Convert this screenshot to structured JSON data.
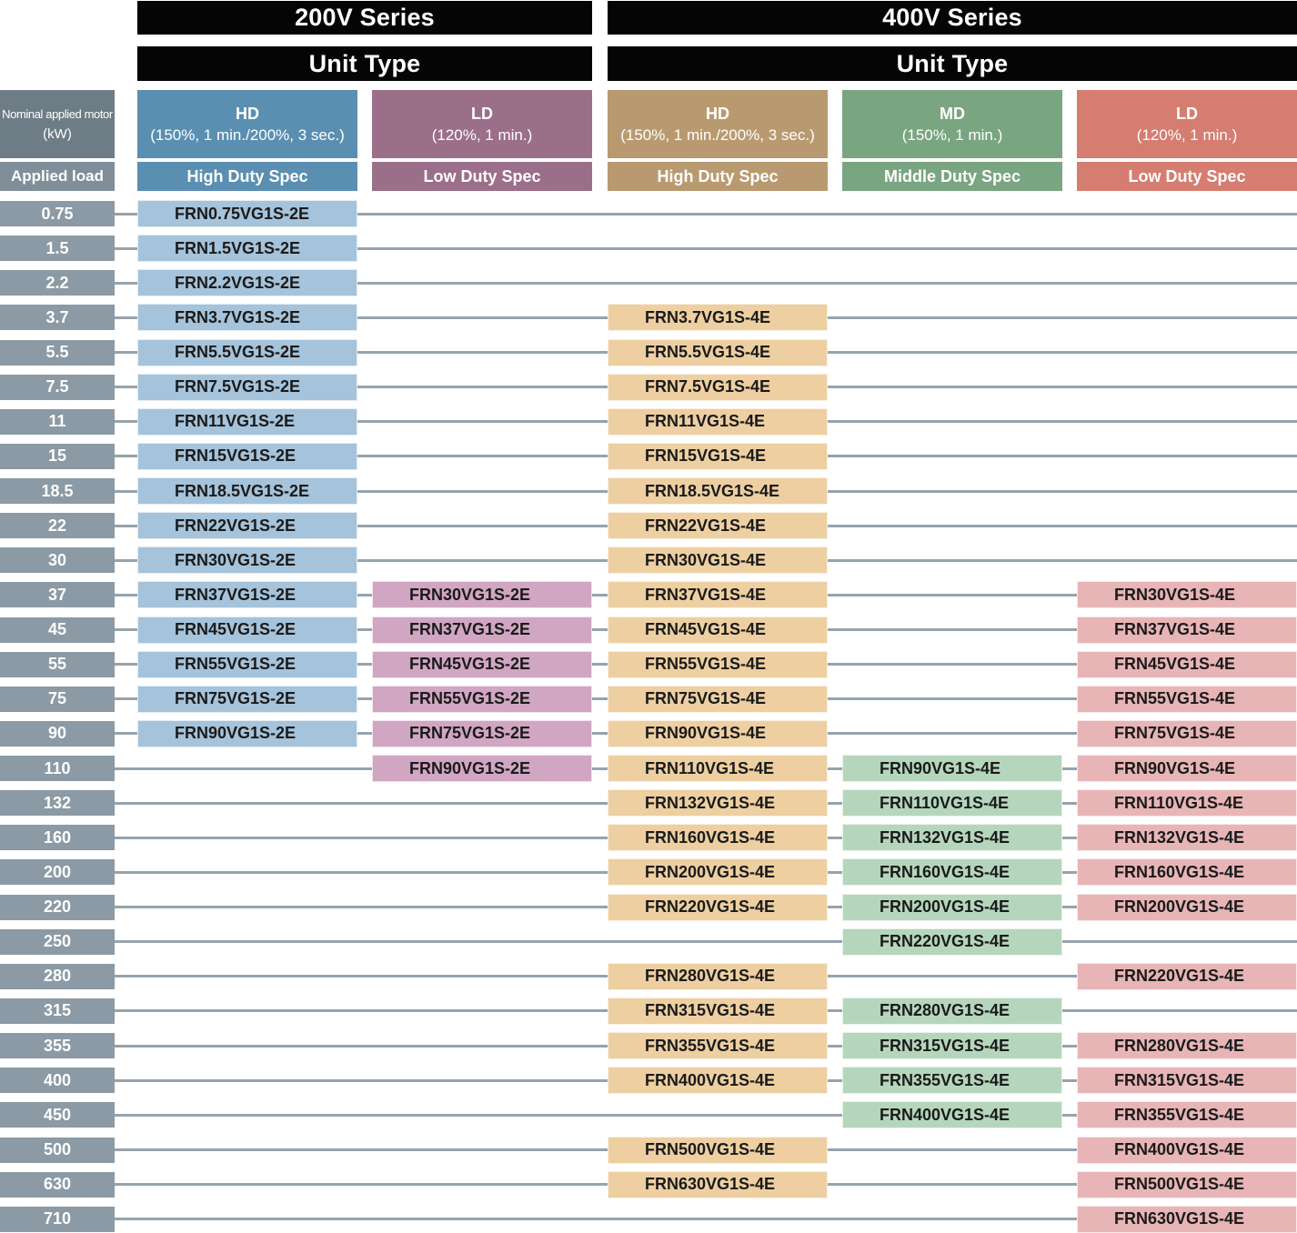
{
  "series": [
    {
      "title": "200V Series",
      "unit_type": "Unit Type"
    },
    {
      "title": "400V Series",
      "unit_type": "Unit Type"
    }
  ],
  "motor_header": {
    "line1": "Nominal applied motor",
    "line2": "(kW)"
  },
  "applied_load": "Applied load",
  "columns": [
    {
      "code": "HD",
      "detail": "(150%, 1 min./200%, 3 sec.)",
      "spec": "High Duty Spec",
      "head_color": "#5a8fb1",
      "cell_color": "#a5c3da"
    },
    {
      "code": "LD",
      "detail": "(120%, 1 min.)",
      "spec": "Low Duty Spec",
      "head_color": "#9b6f89",
      "cell_color": "#d1a6c2"
    },
    {
      "code": "HD",
      "detail": "(150%, 1 min./200%, 3 sec.)",
      "spec": "High Duty Spec",
      "head_color": "#b99a70",
      "cell_color": "#edcfa1"
    },
    {
      "code": "MD",
      "detail": "(150%, 1 min.)",
      "spec": "Middle Duty Spec",
      "head_color": "#7aa581",
      "cell_color": "#b5d6bc"
    },
    {
      "code": "LD",
      "detail": "(120%, 1 min.)",
      "spec": "Low Duty Spec",
      "head_color": "#d57d70",
      "cell_color": "#e8b5b6"
    }
  ],
  "rows": [
    {
      "kw": "0.75",
      "models": [
        "FRN0.75VG1S-2E",
        "",
        "",
        "",
        ""
      ]
    },
    {
      "kw": "1.5",
      "models": [
        "FRN1.5VG1S-2E",
        "",
        "",
        "",
        ""
      ]
    },
    {
      "kw": "2.2",
      "models": [
        "FRN2.2VG1S-2E",
        "",
        "",
        "",
        ""
      ]
    },
    {
      "kw": "3.7",
      "models": [
        "FRN3.7VG1S-2E",
        "",
        "FRN3.7VG1S-4E",
        "",
        ""
      ]
    },
    {
      "kw": "5.5",
      "models": [
        "FRN5.5VG1S-2E",
        "",
        "FRN5.5VG1S-4E",
        "",
        ""
      ]
    },
    {
      "kw": "7.5",
      "models": [
        "FRN7.5VG1S-2E",
        "",
        "FRN7.5VG1S-4E",
        "",
        ""
      ]
    },
    {
      "kw": "11",
      "models": [
        "FRN11VG1S-2E",
        "",
        "FRN11VG1S-4E",
        "",
        ""
      ]
    },
    {
      "kw": "15",
      "models": [
        "FRN15VG1S-2E",
        "",
        "FRN15VG1S-4E",
        "",
        ""
      ]
    },
    {
      "kw": "18.5",
      "models": [
        "FRN18.5VG1S-2E",
        "",
        "FRN18.5VG1S-4E",
        "",
        ""
      ]
    },
    {
      "kw": "22",
      "models": [
        "FRN22VG1S-2E",
        "",
        "FRN22VG1S-4E",
        "",
        ""
      ]
    },
    {
      "kw": "30",
      "models": [
        "FRN30VG1S-2E",
        "",
        "FRN30VG1S-4E",
        "",
        ""
      ]
    },
    {
      "kw": "37",
      "models": [
        "FRN37VG1S-2E",
        "FRN30VG1S-2E",
        "FRN37VG1S-4E",
        "",
        "FRN30VG1S-4E"
      ]
    },
    {
      "kw": "45",
      "models": [
        "FRN45VG1S-2E",
        "FRN37VG1S-2E",
        "FRN45VG1S-4E",
        "",
        "FRN37VG1S-4E"
      ]
    },
    {
      "kw": "55",
      "models": [
        "FRN55VG1S-2E",
        "FRN45VG1S-2E",
        "FRN55VG1S-4E",
        "",
        "FRN45VG1S-4E"
      ]
    },
    {
      "kw": "75",
      "models": [
        "FRN75VG1S-2E",
        "FRN55VG1S-2E",
        "FRN75VG1S-4E",
        "",
        "FRN55VG1S-4E"
      ]
    },
    {
      "kw": "90",
      "models": [
        "FRN90VG1S-2E",
        "FRN75VG1S-2E",
        "FRN90VG1S-4E",
        "",
        "FRN75VG1S-4E"
      ]
    },
    {
      "kw": "110",
      "models": [
        "",
        "FRN90VG1S-2E",
        "FRN110VG1S-4E",
        "FRN90VG1S-4E",
        "FRN90VG1S-4E"
      ]
    },
    {
      "kw": "132",
      "models": [
        "",
        "",
        "FRN132VG1S-4E",
        "FRN110VG1S-4E",
        "FRN110VG1S-4E"
      ]
    },
    {
      "kw": "160",
      "models": [
        "",
        "",
        "FRN160VG1S-4E",
        "FRN132VG1S-4E",
        "FRN132VG1S-4E"
      ]
    },
    {
      "kw": "200",
      "models": [
        "",
        "",
        "FRN200VG1S-4E",
        "FRN160VG1S-4E",
        "FRN160VG1S-4E"
      ]
    },
    {
      "kw": "220",
      "models": [
        "",
        "",
        "FRN220VG1S-4E",
        "FRN200VG1S-4E",
        "FRN200VG1S-4E"
      ]
    },
    {
      "kw": "250",
      "models": [
        "",
        "",
        "",
        "FRN220VG1S-4E",
        ""
      ]
    },
    {
      "kw": "280",
      "models": [
        "",
        "",
        "FRN280VG1S-4E",
        "",
        "FRN220VG1S-4E"
      ]
    },
    {
      "kw": "315",
      "models": [
        "",
        "",
        "FRN315VG1S-4E",
        "FRN280VG1S-4E",
        ""
      ]
    },
    {
      "kw": "355",
      "models": [
        "",
        "",
        "FRN355VG1S-4E",
        "FRN315VG1S-4E",
        "FRN280VG1S-4E"
      ]
    },
    {
      "kw": "400",
      "models": [
        "",
        "",
        "FRN400VG1S-4E",
        "FRN355VG1S-4E",
        "FRN315VG1S-4E"
      ]
    },
    {
      "kw": "450",
      "models": [
        "",
        "",
        "",
        "FRN400VG1S-4E",
        "FRN355VG1S-4E"
      ]
    },
    {
      "kw": "500",
      "models": [
        "",
        "",
        "FRN500VG1S-4E",
        "",
        "FRN400VG1S-4E"
      ]
    },
    {
      "kw": "630",
      "models": [
        "",
        "",
        "FRN630VG1S-4E",
        "",
        "FRN500VG1S-4E"
      ]
    },
    {
      "kw": "710",
      "models": [
        "",
        "",
        "",
        "",
        "FRN630VG1S-4E"
      ]
    }
  ]
}
